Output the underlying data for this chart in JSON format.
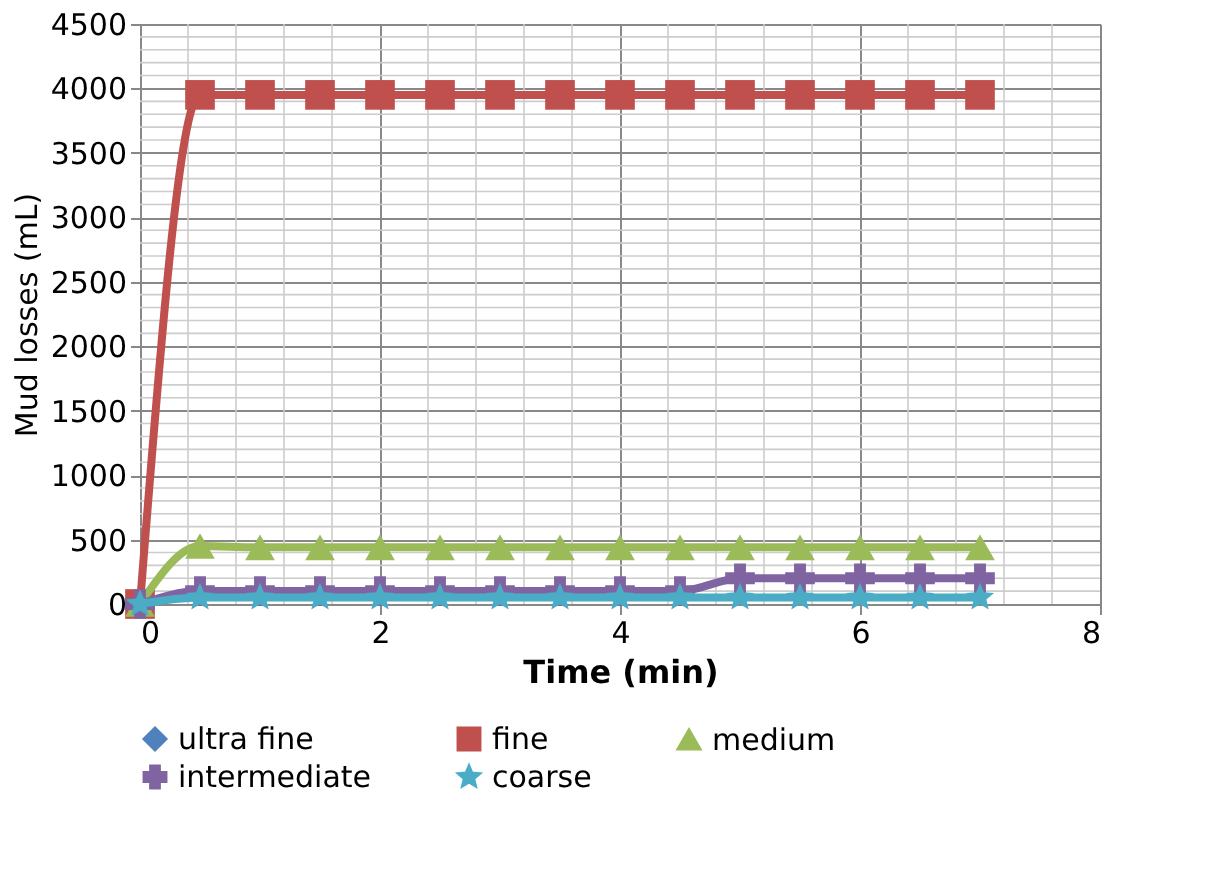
{
  "chart_data": {
    "type": "line",
    "xlabel": "Time (min)",
    "ylabel": "Mud losses (mL)",
    "x": [
      0,
      0.5,
      1,
      1.5,
      2,
      2.5,
      3,
      3.5,
      4,
      4.5,
      5,
      5.5,
      6,
      6.5,
      7
    ],
    "xlim": [
      0,
      8
    ],
    "xticks": [
      0,
      2,
      4,
      6,
      8
    ],
    "ylim": [
      0,
      4500
    ],
    "yticks": [
      0,
      500,
      1000,
      1500,
      2000,
      2500,
      3000,
      3500,
      4000,
      4500
    ],
    "grid": true,
    "legend": "bottom",
    "line_style": "solid",
    "series": [
      {
        "name": "ultra fine",
        "color": "#4f81bd",
        "marker": "diamond",
        "values": [
          null,
          null,
          null,
          null,
          null,
          null,
          null,
          null,
          null,
          null,
          null,
          null,
          null,
          null,
          null
        ]
      },
      {
        "name": "fine",
        "color": "#c0504d",
        "marker": "square",
        "values": [
          0,
          3950,
          3950,
          3950,
          3950,
          3950,
          3950,
          3950,
          3950,
          3950,
          3950,
          3950,
          3950,
          3950,
          3950
        ]
      },
      {
        "name": "medium",
        "color": "#9bbb59",
        "marker": "triangle",
        "values": [
          0,
          450,
          440,
          440,
          440,
          440,
          440,
          440,
          440,
          440,
          440,
          440,
          440,
          440,
          440
        ]
      },
      {
        "name": "intermediate",
        "color": "#8064a2",
        "marker": "cross",
        "values": [
          0,
          100,
          100,
          100,
          100,
          100,
          100,
          100,
          100,
          100,
          200,
          200,
          200,
          200,
          200
        ]
      },
      {
        "name": "coarse",
        "color": "#4bacc6",
        "marker": "star",
        "values": [
          0,
          50,
          50,
          50,
          50,
          50,
          50,
          50,
          50,
          50,
          50,
          50,
          50,
          50,
          50
        ]
      }
    ]
  }
}
